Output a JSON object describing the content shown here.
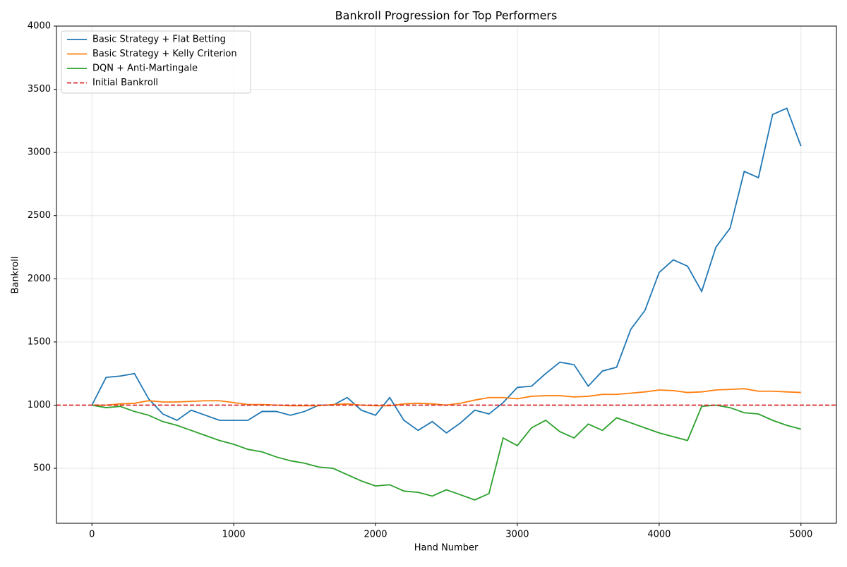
{
  "chart_data": {
    "type": "line",
    "title": "Bankroll Progression for Top Performers",
    "x_label": "Hand Number",
    "y_label": "Bankroll",
    "x": [
      0,
      100,
      200,
      300,
      400,
      500,
      600,
      700,
      800,
      900,
      1000,
      1100,
      1200,
      1300,
      1400,
      1500,
      1600,
      1700,
      1800,
      1900,
      2000,
      2100,
      2200,
      2300,
      2400,
      2500,
      2600,
      2700,
      2800,
      2900,
      3000,
      3100,
      3200,
      3300,
      3400,
      3500,
      3600,
      3700,
      3800,
      3900,
      4000,
      4100,
      4200,
      4300,
      4400,
      4500,
      4600,
      4700,
      4800,
      4900,
      5000
    ],
    "series": [
      {
        "name": "Basic Strategy + Flat Betting",
        "color": "#1f77b4",
        "values": [
          1000,
          1220,
          1230,
          1250,
          1050,
          930,
          880,
          960,
          920,
          880,
          880,
          880,
          950,
          950,
          920,
          950,
          1000,
          1000,
          1060,
          960,
          920,
          1060,
          880,
          800,
          870,
          780,
          860,
          960,
          930,
          1020,
          1140,
          1150,
          1250,
          1340,
          1320,
          1150,
          1270,
          1300,
          1600,
          1750,
          2050,
          2150,
          2100,
          1900,
          2250,
          2400,
          2850,
          2800,
          3300,
          3350,
          3050
        ]
      },
      {
        "name": "Basic Strategy + Kelly Criterion",
        "color": "#ff7f0e",
        "values": [
          1000,
          1000,
          1010,
          1015,
          1035,
          1025,
          1025,
          1030,
          1035,
          1035,
          1020,
          1005,
          1005,
          1000,
          995,
          995,
          995,
          1005,
          1010,
          1000,
          995,
          995,
          1010,
          1015,
          1010,
          1000,
          1015,
          1040,
          1060,
          1060,
          1050,
          1070,
          1075,
          1075,
          1065,
          1070,
          1085,
          1085,
          1095,
          1105,
          1120,
          1115,
          1100,
          1105,
          1120,
          1125,
          1130,
          1110,
          1110,
          1105,
          1100
        ]
      },
      {
        "name": "DQN + Anti-Martingale",
        "color": "#2ca02c",
        "values": [
          1000,
          980,
          990,
          950,
          920,
          870,
          840,
          800,
          760,
          720,
          690,
          650,
          630,
          590,
          560,
          540,
          510,
          500,
          450,
          400,
          360,
          370,
          320,
          310,
          280,
          330,
          290,
          250,
          300,
          740,
          680,
          820,
          880,
          790,
          740,
          850,
          800,
          900,
          860,
          820,
          780,
          750,
          720,
          990,
          1000,
          980,
          940,
          930,
          880,
          840,
          810
        ]
      }
    ],
    "reference_line": {
      "name": "Initial Bankroll",
      "value": 1000,
      "color": "#d62728",
      "dashed": true
    },
    "xlim": [
      -250,
      5250
    ],
    "xticks": [
      0,
      1000,
      2000,
      3000,
      4000,
      5000
    ],
    "ylim": [
      65,
      4000
    ],
    "yticks": [
      500,
      1000,
      1500,
      2000,
      2500,
      3000,
      3500,
      4000
    ],
    "grid": true,
    "legend": "upper-left"
  }
}
